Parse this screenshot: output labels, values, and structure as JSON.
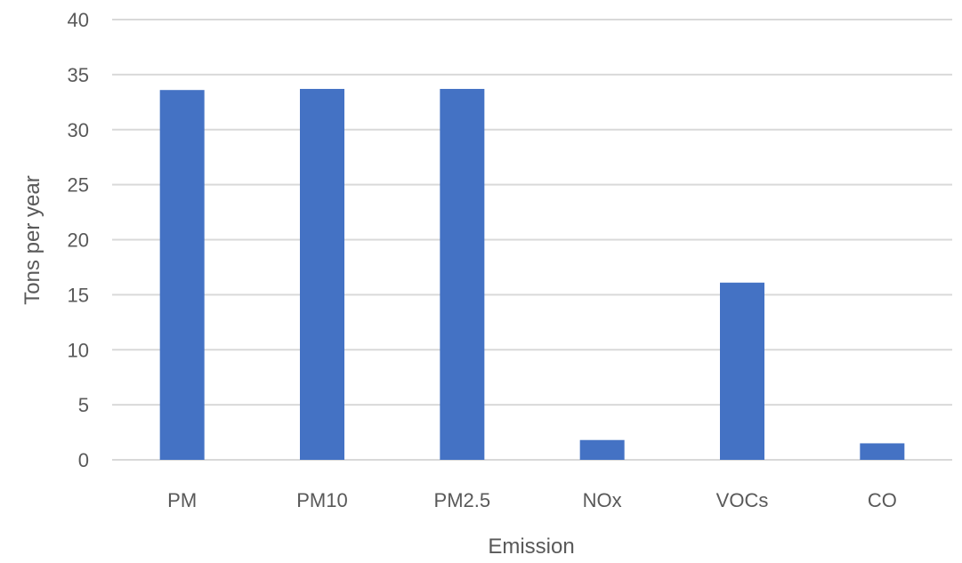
{
  "chart_data": {
    "type": "bar",
    "title": "",
    "xlabel": "Emission",
    "ylabel": "Tons per year",
    "categories": [
      "PM",
      "PM10",
      "PM2.5",
      "NOx",
      "VOCs",
      "CO"
    ],
    "series": [
      {
        "values": [
          33.6,
          33.7,
          33.7,
          1.8,
          16.1,
          1.5
        ],
        "color": "#4472C4"
      }
    ],
    "ylim": [
      0,
      40
    ],
    "yticks": [
      "0",
      "5",
      "10",
      "15",
      "20",
      "25",
      "30",
      "35",
      "40"
    ],
    "grid": true,
    "gridline_color": "#D9D9D9",
    "legend": "none"
  }
}
